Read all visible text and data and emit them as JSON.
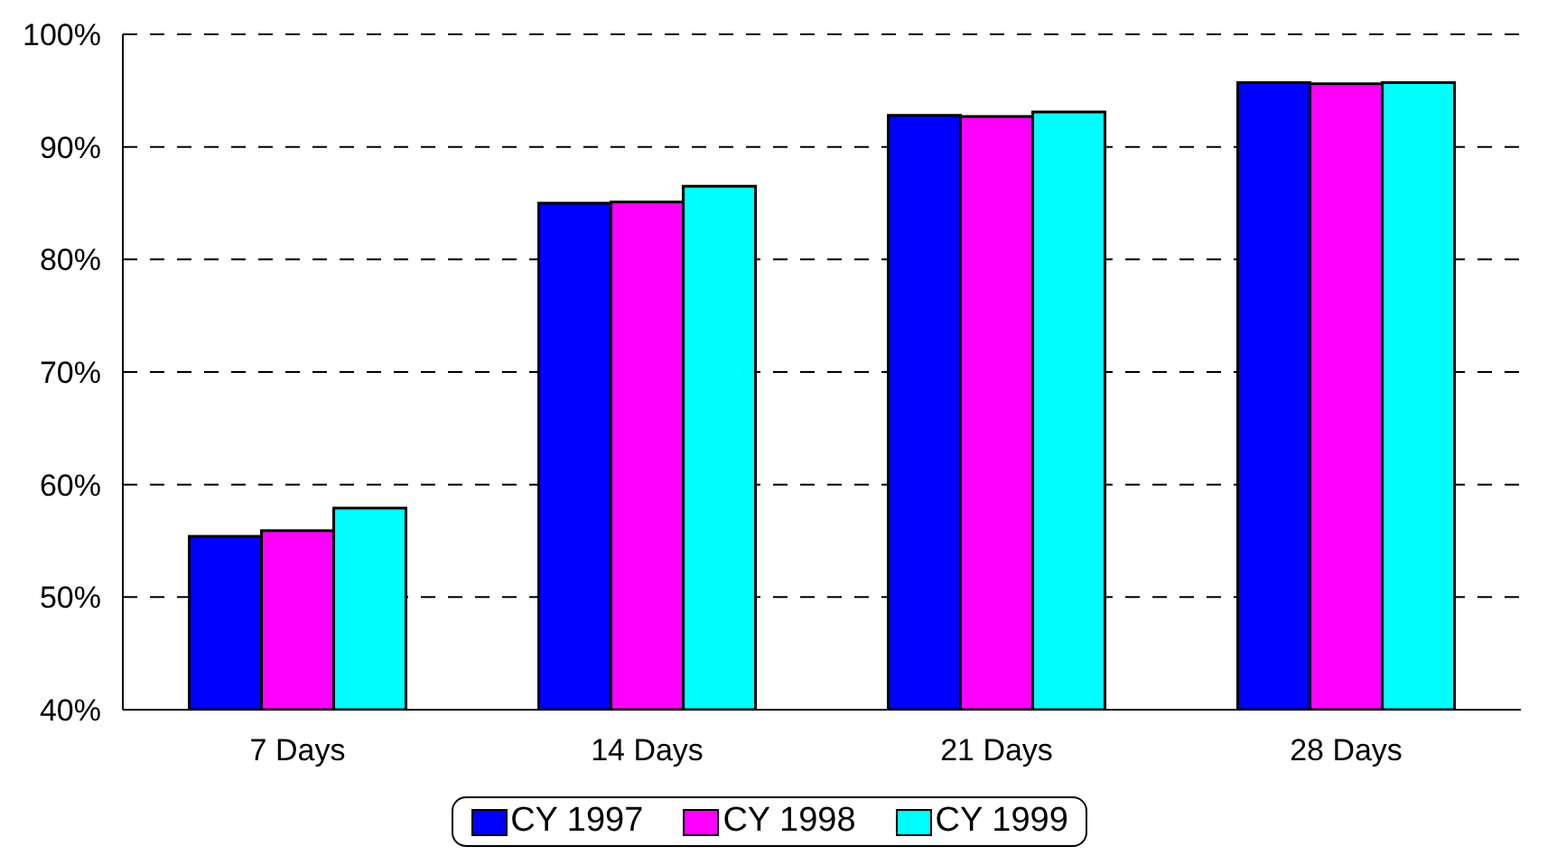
{
  "chart_data": {
    "type": "bar",
    "categories": [
      "7 Days",
      "14 Days",
      "21 Days",
      "28 Days"
    ],
    "series": [
      {
        "name": "CY 1997",
        "color": "#0000ff",
        "values": [
          55.4,
          85.0,
          92.8,
          95.7
        ]
      },
      {
        "name": "CY 1998",
        "color": "#ff00ff",
        "values": [
          55.9,
          85.1,
          92.7,
          95.6
        ]
      },
      {
        "name": "CY 1999",
        "color": "#00ffff",
        "values": [
          57.9,
          86.5,
          93.1,
          95.7
        ]
      }
    ],
    "ylim": [
      40,
      100
    ],
    "yticks": [
      {
        "value": 40,
        "label": "40%"
      },
      {
        "value": 50,
        "label": "50%"
      },
      {
        "value": 60,
        "label": "60%"
      },
      {
        "value": 70,
        "label": "70%"
      },
      {
        "value": 80,
        "label": "80%"
      },
      {
        "value": 90,
        "label": "90%"
      },
      {
        "value": 100,
        "label": "100%"
      }
    ],
    "grid": "y",
    "legend": "bottom"
  }
}
